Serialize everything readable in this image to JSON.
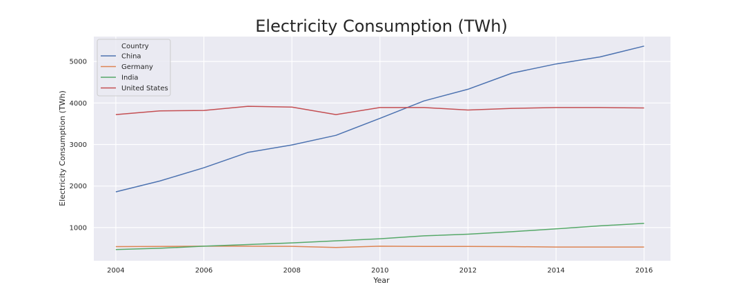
{
  "chart_data": {
    "type": "line",
    "title": "Electricity Consumption (TWh)",
    "xlabel": "Year",
    "ylabel": "Electricity Consumption (TWh)",
    "xlim": [
      2003.5,
      2016.6
    ],
    "ylim": [
      200,
      5600
    ],
    "xticks": [
      2004,
      2006,
      2008,
      2010,
      2012,
      2014,
      2016
    ],
    "yticks": [
      1000,
      2000,
      3000,
      4000,
      5000
    ],
    "grid": true,
    "legend": {
      "title": "Country",
      "placement": "top-left"
    },
    "x": [
      2004,
      2005,
      2006,
      2007,
      2008,
      2009,
      2010,
      2011,
      2012,
      2013,
      2014,
      2015,
      2016
    ],
    "series": [
      {
        "name": "China",
        "color": "#4c72b0",
        "values": [
          1860,
          2120,
          2440,
          2810,
          2990,
          3220,
          3630,
          4050,
          4330,
          4720,
          4940,
          5110,
          5370
        ]
      },
      {
        "name": "Germany",
        "color": "#dd8452",
        "values": [
          540,
          545,
          550,
          550,
          548,
          520,
          550,
          545,
          545,
          540,
          530,
          530,
          530
        ]
      },
      {
        "name": "India",
        "color": "#55a868",
        "values": [
          470,
          500,
          550,
          590,
          630,
          680,
          730,
          800,
          840,
          900,
          970,
          1040,
          1100
        ]
      },
      {
        "name": "United States",
        "color": "#c44e52",
        "values": [
          3720,
          3810,
          3820,
          3920,
          3900,
          3720,
          3890,
          3890,
          3830,
          3870,
          3890,
          3890,
          3880
        ]
      }
    ]
  }
}
